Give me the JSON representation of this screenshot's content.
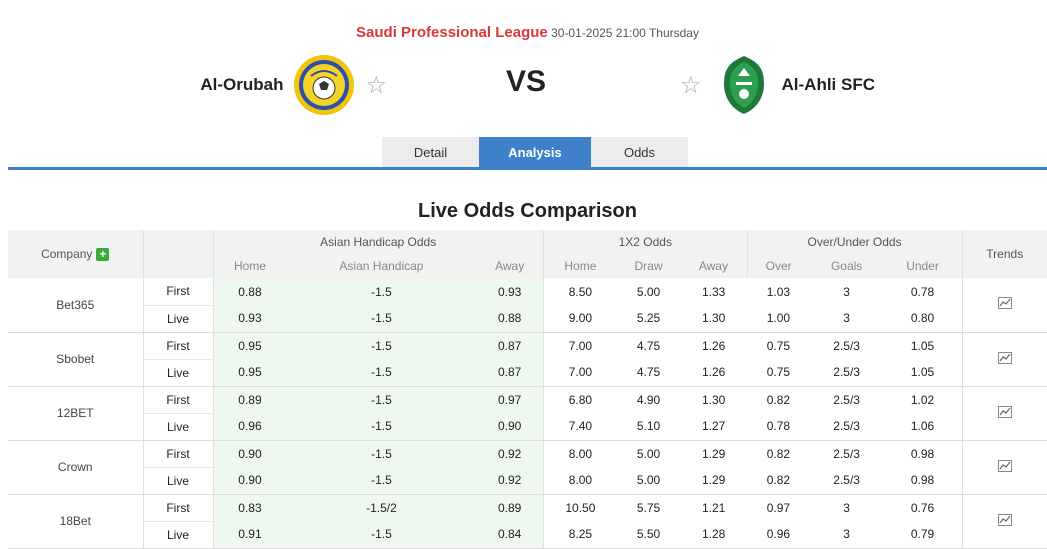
{
  "match": {
    "league": "Saudi Professional League",
    "datetime": "30-01-2025 21:00 Thursday",
    "home_team": "Al-Orubah",
    "away_team": "Al-Ahli SFC",
    "vs": "VS"
  },
  "tabs": [
    {
      "label": "Detail"
    },
    {
      "label": "Analysis"
    },
    {
      "label": "Odds"
    }
  ],
  "section_title": "Live Odds Comparison",
  "table": {
    "company_header": "Company",
    "groups": {
      "asian_handicap": "Asian Handicap Odds",
      "x12": "1X2 Odds",
      "over_under": "Over/Under Odds",
      "trends": "Trends"
    },
    "subheaders": {
      "ah": [
        "Home",
        "Asian Handicap",
        "Away"
      ],
      "x12": [
        "Home",
        "Draw",
        "Away"
      ],
      "ou": [
        "Over",
        "Goals",
        "Under"
      ]
    },
    "rows": [
      {
        "company": "Bet365",
        "first": {
          "type": "First",
          "ah": [
            "0.88",
            "-1.5",
            "0.93"
          ],
          "x12": [
            "8.50",
            "5.00",
            "1.33"
          ],
          "ou": [
            "1.03",
            "3",
            "0.78"
          ]
        },
        "live": {
          "type": "Live",
          "ah": [
            "0.93",
            "-1.5",
            "0.88"
          ],
          "x12": [
            "9.00",
            "5.25",
            "1.30"
          ],
          "ou": [
            "1.00",
            "3",
            "0.80"
          ]
        }
      },
      {
        "company": "Sbobet",
        "first": {
          "type": "First",
          "ah": [
            "0.95",
            "-1.5",
            "0.87"
          ],
          "x12": [
            "7.00",
            "4.75",
            "1.26"
          ],
          "ou": [
            "0.75",
            "2.5/3",
            "1.05"
          ]
        },
        "live": {
          "type": "Live",
          "ah": [
            "0.95",
            "-1.5",
            "0.87"
          ],
          "x12": [
            "7.00",
            "4.75",
            "1.26"
          ],
          "ou": [
            "0.75",
            "2.5/3",
            "1.05"
          ]
        }
      },
      {
        "company": "12BET",
        "first": {
          "type": "First",
          "ah": [
            "0.89",
            "-1.5",
            "0.97"
          ],
          "x12": [
            "6.80",
            "4.90",
            "1.30"
          ],
          "ou": [
            "0.82",
            "2.5/3",
            "1.02"
          ]
        },
        "live": {
          "type": "Live",
          "ah": [
            "0.96",
            "-1.5",
            "0.90"
          ],
          "x12": [
            "7.40",
            "5.10",
            "1.27"
          ],
          "ou": [
            "0.78",
            "2.5/3",
            "1.06"
          ]
        }
      },
      {
        "company": "Crown",
        "first": {
          "type": "First",
          "ah": [
            "0.90",
            "-1.5",
            "0.92"
          ],
          "x12": [
            "8.00",
            "5.00",
            "1.29"
          ],
          "ou": [
            "0.82",
            "2.5/3",
            "0.98"
          ]
        },
        "live": {
          "type": "Live",
          "ah": [
            "0.90",
            "-1.5",
            "0.92"
          ],
          "x12": [
            "8.00",
            "5.00",
            "1.29"
          ],
          "ou": [
            "0.82",
            "2.5/3",
            "0.98"
          ]
        }
      },
      {
        "company": "18Bet",
        "first": {
          "type": "First",
          "ah": [
            "0.83",
            "-1.5/2",
            "0.89"
          ],
          "x12": [
            "10.50",
            "5.75",
            "1.21"
          ],
          "ou": [
            "0.97",
            "3",
            "0.76"
          ]
        },
        "live": {
          "type": "Live",
          "ah": [
            "0.91",
            "-1.5",
            "0.84"
          ],
          "x12": [
            "8.25",
            "5.50",
            "1.28"
          ],
          "ou": [
            "0.96",
            "3",
            "0.79"
          ]
        }
      }
    ]
  },
  "colors": {
    "accent": "#3e80c9",
    "league": "#d83a3a",
    "ah_bg": "#eef8ee",
    "x12_bg": "#fdfce0",
    "plus": "#3aaa3a"
  },
  "icons": {
    "favorite": "star-outline-icon",
    "trend": "line-chart-icon",
    "add": "plus-icon"
  }
}
